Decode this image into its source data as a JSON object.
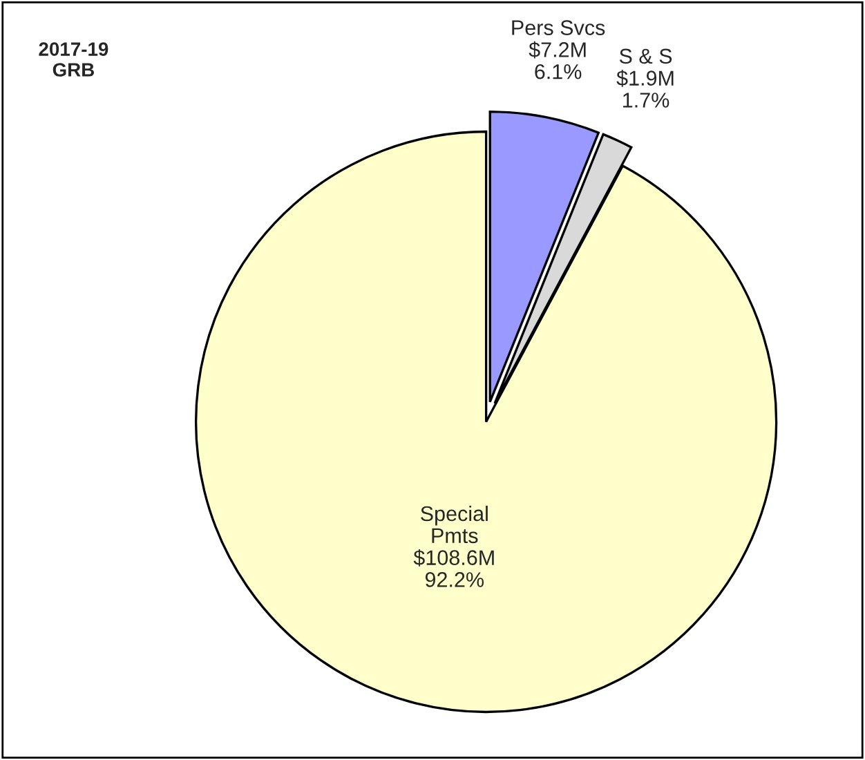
{
  "chart_data": {
    "type": "pie",
    "title": "2017-19\nGRB",
    "categories": [
      "Pers Svcs",
      "S & S",
      "Special\nPmts"
    ],
    "values": [
      6.1,
      1.7,
      92.2
    ],
    "value_labels": [
      "$7.2M\n6.1%",
      "$1.9M\n1.7%",
      "$108.6M\n92.2%"
    ],
    "colors": [
      "#9999ff",
      "#d9d9d9",
      "#ffffcc"
    ]
  }
}
